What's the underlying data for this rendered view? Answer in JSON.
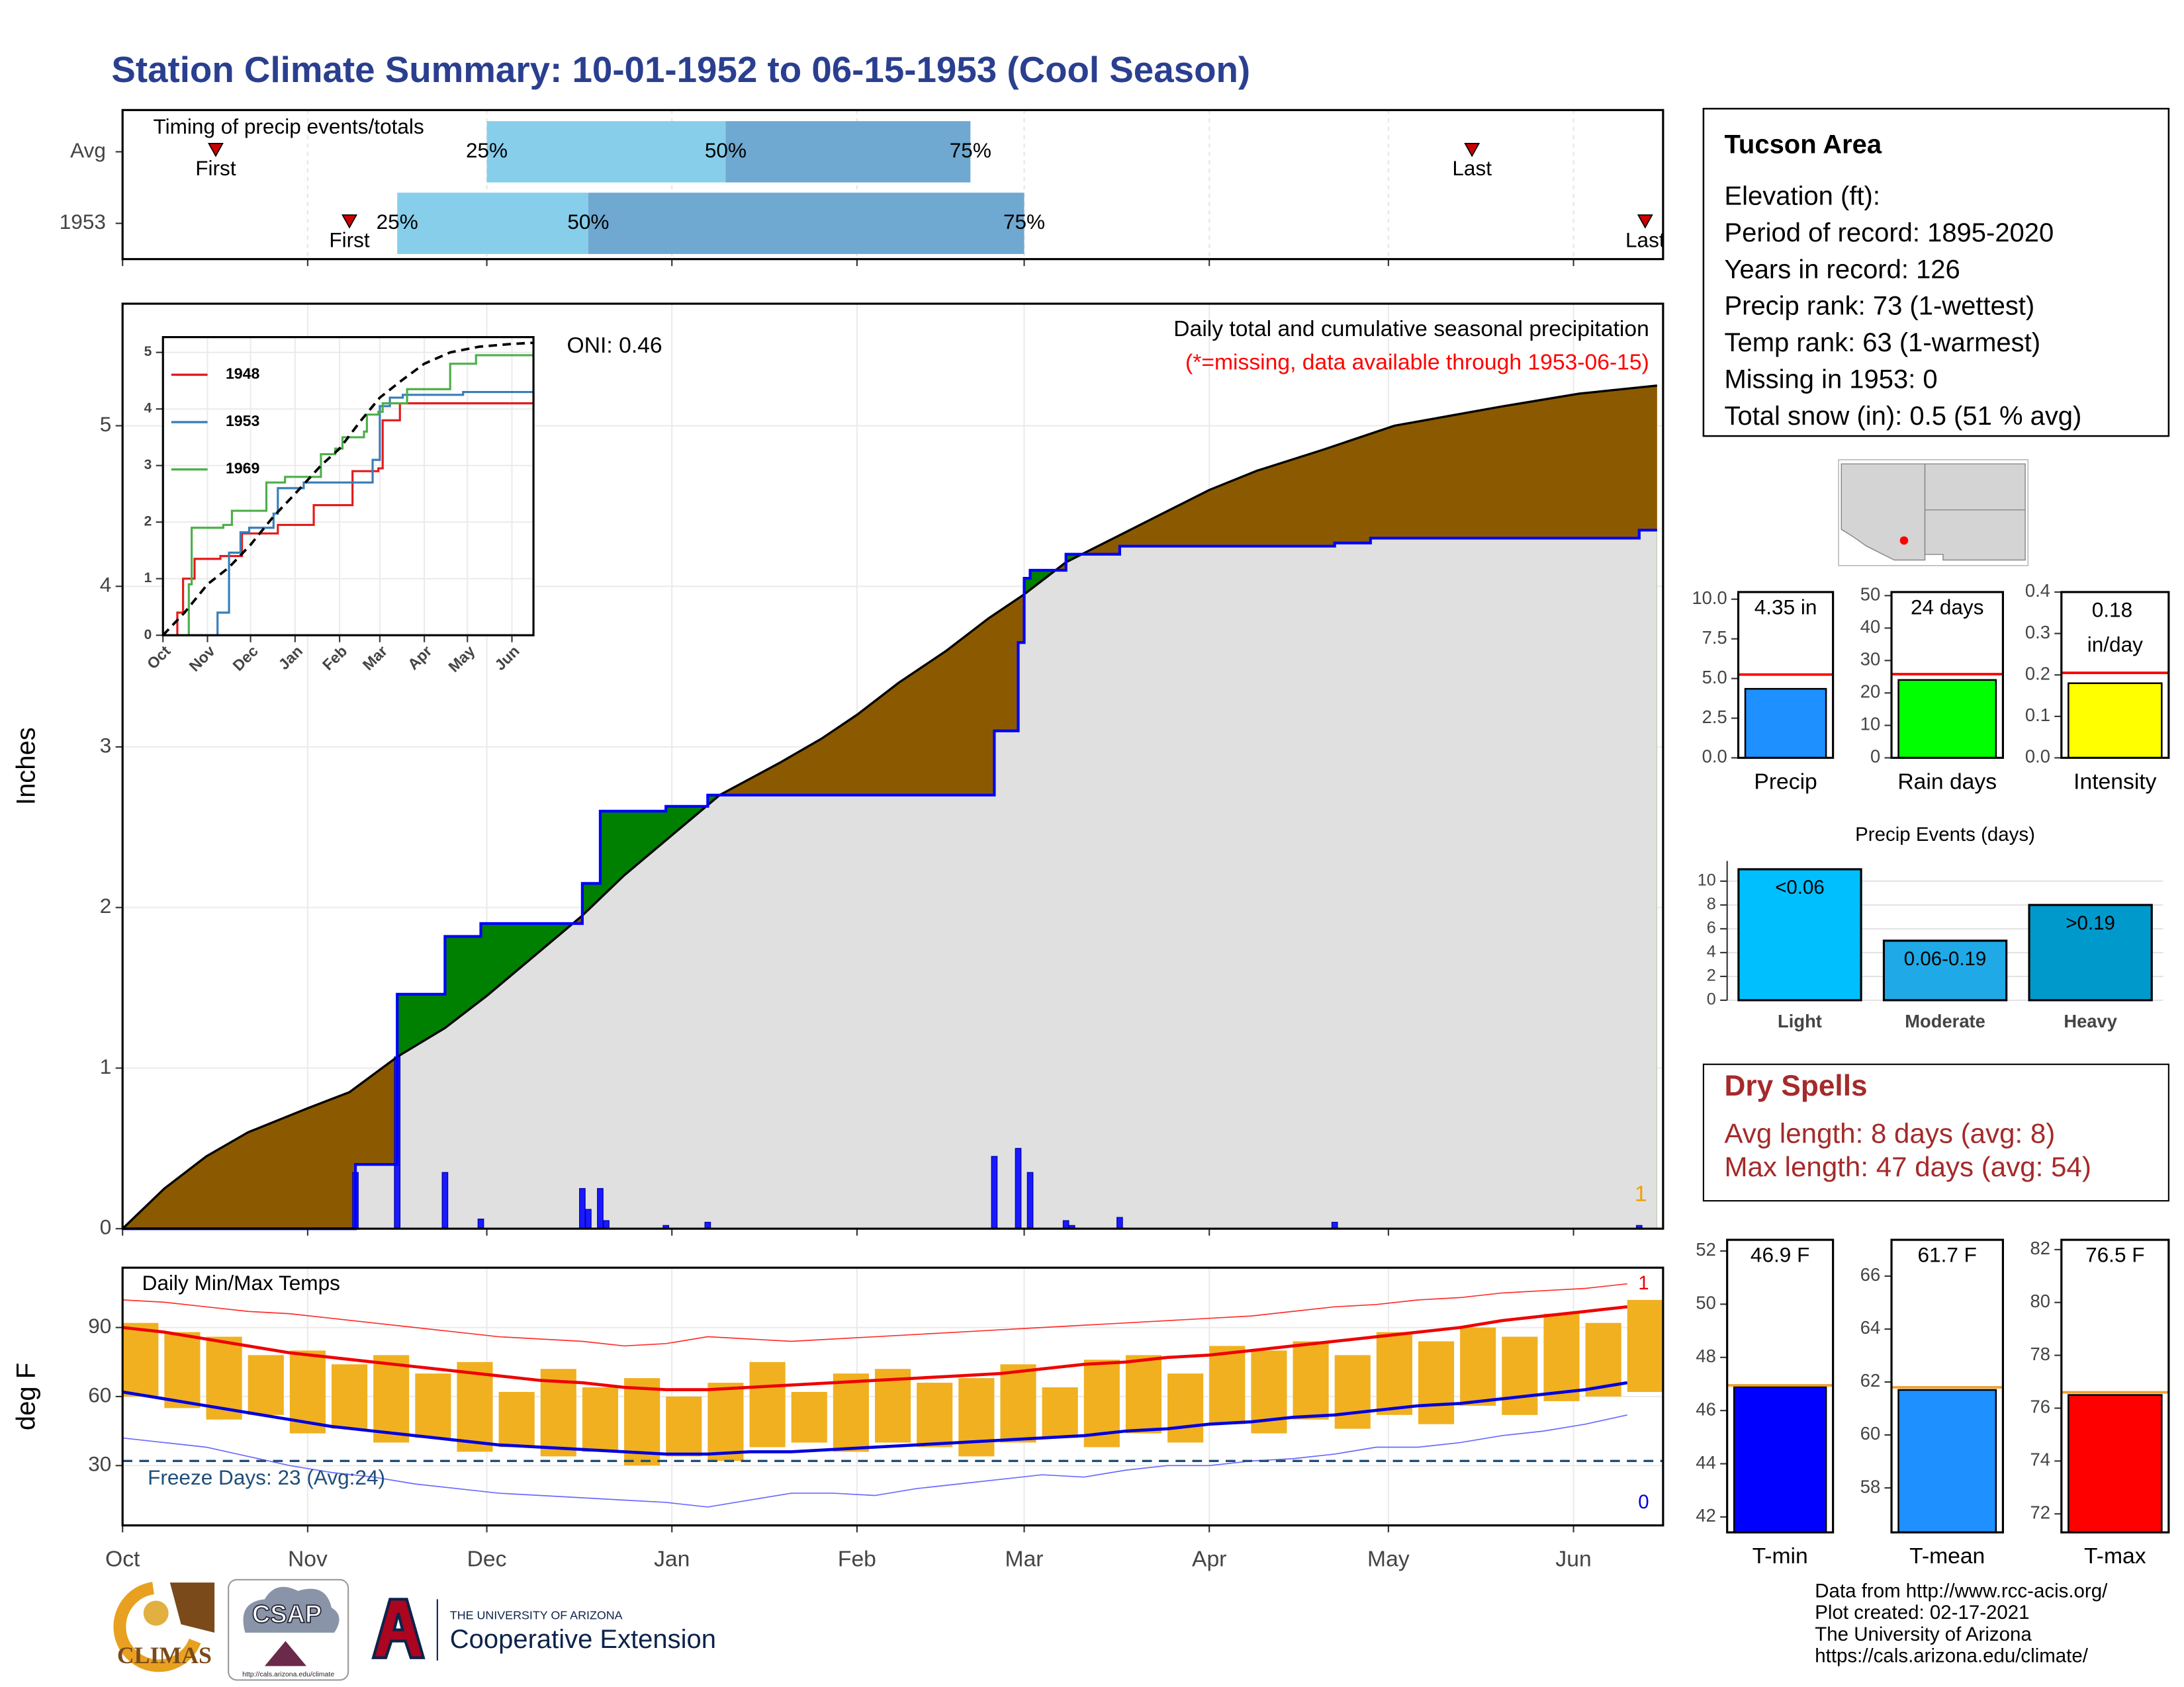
{
  "title": "Station Climate Summary: 10-01-1952 to 06-15-1953 (Cool Season)",
  "info": {
    "title": "Tucson Area",
    "lines": [
      "Elevation (ft):",
      "Period of record: 1895-2020",
      "Years in record: 126",
      "Precip rank: 73 (1-wettest)",
      "Temp rank: 63 (1-warmest)",
      "Missing in 1953: 0",
      "Total snow (in): 0.5 (51 % avg)"
    ]
  },
  "dry_spells": {
    "title": "Dry Spells",
    "lines": [
      "Avg length: 8 days (avg: 8)",
      "Max length: 47 days (avg: 54)"
    ]
  },
  "footer": [
    "Data from http://www.rcc-acis.org/",
    "Plot created: 02-17-2021",
    "The University of Arizona",
    "https://cals.arizona.edu/climate/"
  ],
  "logos": {
    "climas": "CLIMAS",
    "csap": "CSAP",
    "csap_url": "http://cals.arizona.edu/climate",
    "ua": "THE UNIVERSITY OF ARIZONA",
    "extension": "Cooperative Extension"
  },
  "chart_data": [
    {
      "type": "timing",
      "title": "Timing of precip events/totals",
      "categories": [
        "Avg",
        "1953"
      ],
      "first": [
        15.6,
        38
      ],
      "q25": [
        61,
        46
      ],
      "q50": [
        101,
        78
      ],
      "q75": [
        142,
        151
      ],
      "last": [
        226,
        255
      ],
      "labels": {
        "first": "First",
        "q25": "25%",
        "q50": "50%",
        "q75": "75%",
        "last": "Last"
      },
      "colors": [
        "#87ceeb",
        "#6fa8d0"
      ],
      "marker_color": "#cc0000",
      "xlim": [
        0,
        258
      ],
      "xticks": [
        0,
        31,
        61,
        92,
        123,
        151,
        182,
        212,
        243
      ]
    },
    {
      "type": "area",
      "ylabel": "Inches",
      "subtitle": "Daily total and cumulative seasonal precipitation",
      "note": "(*=missing, data available through 1953-06-15)",
      "oni": "ONI: 0.46",
      "count": 1,
      "xlim": [
        0,
        258
      ],
      "xticks": [
        0,
        31,
        61,
        92,
        123,
        151,
        182,
        212,
        243
      ],
      "ylim": [
        0,
        5.76
      ],
      "yticks": [
        0,
        1,
        2,
        3,
        4,
        5
      ],
      "grid": true,
      "series": [
        {
          "color": "#000000",
          "fill": "#8b5a00",
          "x": [
            0,
            7,
            14,
            21,
            31,
            38,
            46,
            54,
            61,
            69,
            77,
            84,
            92,
            100,
            110,
            117,
            123,
            130,
            138,
            145,
            151,
            158,
            166,
            174,
            182,
            190,
            201,
            213,
            222,
            231,
            244,
            257
          ],
          "values": [
            0,
            0.25,
            0.45,
            0.6,
            0.75,
            0.85,
            1.07,
            1.25,
            1.45,
            1.7,
            1.95,
            2.2,
            2.45,
            2.7,
            2.9,
            3.05,
            3.2,
            3.4,
            3.6,
            3.8,
            3.95,
            4.15,
            4.3,
            4.45,
            4.6,
            4.72,
            4.85,
            5.0,
            5.06,
            5.12,
            5.2,
            5.25
          ]
        },
        {
          "color": "#0000ff",
          "fill": "#008000",
          "step": true,
          "x": [
            0,
            38,
            39,
            46,
            54,
            60,
            77,
            80,
            91,
            98,
            146,
            150,
            151,
            152,
            158,
            167,
            203,
            209,
            254,
            257
          ],
          "values": [
            0,
            0,
            0.4,
            1.46,
            1.82,
            1.9,
            2.15,
            2.6,
            2.63,
            2.7,
            3.1,
            3.65,
            4.05,
            4.1,
            4.2,
            4.25,
            4.27,
            4.3,
            4.35,
            4.35
          ]
        }
      ],
      "both_fill": "#e0e0e0",
      "daily": {
        "color": "#1a1aff",
        "x": [
          39,
          46,
          54,
          60,
          77,
          78,
          80,
          81,
          91,
          98,
          146,
          150,
          152,
          158,
          159,
          167,
          203,
          254
        ],
        "values": [
          0.35,
          1.07,
          0.35,
          0.06,
          0.25,
          0.12,
          0.25,
          0.05,
          0.02,
          0.04,
          0.45,
          0.5,
          0.35,
          0.05,
          0.02,
          0.07,
          0.04,
          0.02
        ]
      }
    },
    {
      "type": "line",
      "xlim": [
        0,
        258
      ],
      "ylim": [
        0,
        5.27
      ],
      "yticks": [
        0,
        1,
        2,
        3,
        4,
        5
      ],
      "xticks": [
        {
          "value": 0,
          "label": "Oct"
        },
        {
          "value": 31,
          "label": "Nov"
        },
        {
          "value": 61,
          "label": "Dec"
        },
        {
          "value": 92,
          "label": "Jan"
        },
        {
          "value": 123,
          "label": "Feb"
        },
        {
          "value": 151,
          "label": "Mar"
        },
        {
          "value": 182,
          "label": "Apr"
        },
        {
          "value": 212,
          "label": "May"
        },
        {
          "value": 243,
          "label": "Jun"
        }
      ],
      "series": [
        {
          "name": "1948",
          "color": "#e41a1c",
          "x": [
            0,
            10,
            14,
            22,
            40,
            55,
            80,
            105,
            132,
            150,
            153,
            165,
            258
          ],
          "values": [
            0,
            0.4,
            1.0,
            1.35,
            1.4,
            1.8,
            1.95,
            2.3,
            2.9,
            2.95,
            3.8,
            4.1,
            4.3
          ]
        },
        {
          "name": "1953",
          "color": "#377eb8",
          "x": [
            0,
            38,
            46,
            54,
            60,
            77,
            80,
            98,
            146,
            151,
            158,
            167,
            209,
            258
          ],
          "values": [
            0,
            0.4,
            1.46,
            1.82,
            1.9,
            2.15,
            2.6,
            2.7,
            3.1,
            4.05,
            4.2,
            4.25,
            4.3,
            4.35
          ]
        },
        {
          "name": "1969",
          "color": "#4daf4a",
          "x": [
            0,
            17,
            18,
            20,
            42,
            48,
            70,
            72,
            85,
            108,
            110,
            120,
            125,
            140,
            142,
            150,
            153,
            170,
            190,
            200,
            215,
            218,
            258
          ],
          "values": [
            0,
            0,
            0.9,
            1.9,
            1.95,
            2.2,
            2.2,
            2.7,
            2.8,
            2.8,
            3.2,
            3.3,
            3.5,
            3.6,
            3.9,
            3.95,
            4.1,
            4.35,
            4.35,
            4.8,
            4.8,
            4.95,
            4.95
          ]
        },
        {
          "color": "#000000",
          "dashed": true,
          "x": [
            0,
            15,
            31,
            46,
            61,
            77,
            92,
            110,
            123,
            138,
            151,
            166,
            182,
            200,
            220,
            243,
            258
          ],
          "values": [
            0,
            0.4,
            0.9,
            1.2,
            1.6,
            2.1,
            2.5,
            3.0,
            3.3,
            3.8,
            4.2,
            4.5,
            4.8,
            5.0,
            5.1,
            5.15,
            5.17
          ]
        }
      ]
    },
    {
      "type": "temps",
      "title": "Daily Min/Max Temps",
      "ylabel": "deg F",
      "freeze_label": "Freeze Days: 23 (Avg:24)",
      "record_high_days": 1,
      "record_low_days": 0,
      "freeze": 32,
      "grid": true,
      "xlim": [
        0,
        258
      ],
      "ylim": [
        4,
        116
      ],
      "yticks": [
        30,
        60,
        90
      ],
      "xticks": [
        {
          "value": 0,
          "label": "Oct"
        },
        {
          "value": 31,
          "label": "Nov"
        },
        {
          "value": 61,
          "label": "Dec"
        },
        {
          "value": 92,
          "label": "Jan"
        },
        {
          "value": 123,
          "label": "Feb"
        },
        {
          "value": 151,
          "label": "Mar"
        },
        {
          "value": 182,
          "label": "Apr"
        },
        {
          "value": 212,
          "label": "May"
        },
        {
          "value": 243,
          "label": "Jun"
        }
      ],
      "x": [
        0,
        7,
        14,
        21,
        28,
        35,
        42,
        49,
        56,
        63,
        70,
        77,
        84,
        91,
        98,
        105,
        112,
        119,
        126,
        133,
        140,
        147,
        154,
        161,
        168,
        175,
        182,
        189,
        196,
        203,
        210,
        217,
        224,
        231,
        238,
        245,
        252
      ],
      "bar_color": "#f0b020",
      "max": [
        92,
        88,
        86,
        78,
        80,
        74,
        78,
        70,
        75,
        62,
        72,
        64,
        68,
        60,
        66,
        75,
        62,
        70,
        72,
        66,
        68,
        74,
        64,
        76,
        78,
        70,
        82,
        80,
        84,
        78,
        88,
        84,
        90,
        86,
        96,
        92,
        102
      ],
      "min": [
        60,
        55,
        50,
        52,
        44,
        46,
        40,
        42,
        36,
        38,
        34,
        36,
        30,
        34,
        32,
        38,
        40,
        36,
        40,
        38,
        34,
        40,
        42,
        38,
        44,
        40,
        48,
        44,
        50,
        46,
        52,
        48,
        56,
        52,
        58,
        60,
        62
      ],
      "series": [
        {
          "color": "#ff3030",
          "width": 0.8,
          "values": [
            102,
            101,
            99,
            97,
            96,
            94,
            92,
            90,
            88,
            86,
            85,
            84,
            82,
            83,
            86,
            85,
            84,
            85,
            86,
            87,
            88,
            89,
            90,
            91,
            92,
            93,
            94,
            95,
            97,
            99,
            100,
            102,
            103,
            105,
            106,
            107,
            109
          ]
        },
        {
          "color": "#6a6aff",
          "width": 0.8,
          "values": [
            42,
            40,
            38,
            34,
            30,
            27,
            25,
            22,
            20,
            18,
            17,
            16,
            15,
            14,
            12,
            15,
            18,
            18,
            17,
            20,
            22,
            24,
            26,
            25,
            28,
            30,
            30,
            32,
            33,
            35,
            38,
            38,
            40,
            43,
            45,
            48,
            52
          ]
        },
        {
          "color": "#ee0000",
          "width": 2.2,
          "values": [
            90,
            88,
            85,
            82,
            79,
            77,
            75,
            73,
            71,
            69,
            67,
            66,
            64,
            63,
            63,
            64,
            65,
            66,
            67,
            68,
            69,
            70,
            72,
            74,
            75,
            77,
            78,
            80,
            82,
            84,
            86,
            88,
            90,
            93,
            95,
            97,
            99
          ]
        },
        {
          "color": "#0000dd",
          "width": 2.2,
          "values": [
            62,
            59,
            56,
            53,
            50,
            47,
            45,
            43,
            41,
            39,
            38,
            37,
            36,
            35,
            35,
            36,
            36,
            37,
            38,
            39,
            40,
            41,
            42,
            43,
            45,
            46,
            48,
            49,
            51,
            52,
            54,
            56,
            57,
            59,
            61,
            63,
            66
          ]
        }
      ]
    },
    {
      "type": "single_bar",
      "category": "Precip",
      "value": 4.35,
      "value_label": "4.35 in",
      "avg": 5.25,
      "color": "#1e90ff",
      "avg_color": "#ff0000",
      "ylim": [
        0,
        10.45
      ],
      "yticks": [
        {
          "value": 0,
          "label": "0.0"
        },
        {
          "value": 2.5,
          "label": "2.5"
        },
        {
          "value": 5,
          "label": "5.0"
        },
        {
          "value": 7.5,
          "label": "7.5"
        },
        {
          "value": 10,
          "label": "10.0"
        }
      ]
    },
    {
      "type": "single_bar",
      "category": "Rain days",
      "value": 24,
      "value_label": "24 days",
      "avg": 25.8,
      "color": "#00ff00",
      "avg_color": "#ff0000",
      "ylim": [
        0,
        51.1
      ],
      "yticks": [
        0,
        10,
        20,
        30,
        40,
        50
      ]
    },
    {
      "type": "single_bar",
      "category": "Intensity",
      "value": 0.18,
      "value_label": "0.18 in/day",
      "avg": 0.205,
      "color": "#ffff00",
      "avg_color": "#ff0000",
      "ylim": [
        0,
        0.4
      ],
      "yticks": [
        {
          "value": 0,
          "label": "0.0"
        },
        0.1,
        0.2,
        0.3,
        0.4
      ]
    },
    {
      "type": "bar",
      "title": "Precip Events (days)",
      "categories": [
        "Light",
        "Moderate",
        "Heavy"
      ],
      "values": [
        11,
        5,
        8
      ],
      "value_labels": [
        "<0.06",
        "0.06-0.19",
        ">0.19"
      ],
      "colors": [
        "#00bfff",
        "#1fa9e6",
        "#0099cc"
      ],
      "ylim": [
        0,
        11.7
      ],
      "yticks": [
        0,
        2,
        4,
        6,
        8,
        10
      ],
      "grid": true
    },
    {
      "type": "single_bar",
      "category": "T-min",
      "value": 46.9,
      "value_label": "46.9 F",
      "avg": 46.95,
      "color": "#0000ff",
      "avg_color": "#f0a030",
      "ylim": [
        41.42,
        52.42
      ],
      "yticks": [
        42,
        44,
        46,
        48,
        50,
        52
      ]
    },
    {
      "type": "single_bar",
      "category": "T-mean",
      "value": 61.7,
      "value_label": "61.7 F",
      "avg": 61.8,
      "color": "#1e90ff",
      "avg_color": "#f0a030",
      "ylim": [
        56.32,
        67.37
      ],
      "yticks": [
        58,
        60,
        62,
        64,
        66
      ]
    },
    {
      "type": "single_bar",
      "category": "T-max",
      "value": 76.5,
      "value_label": "76.5 F",
      "avg": 76.6,
      "color": "#ff0000",
      "avg_color": "#f0a030",
      "ylim": [
        71.3,
        82.37
      ],
      "yticks": [
        72,
        74,
        76,
        78,
        80,
        82
      ]
    }
  ]
}
